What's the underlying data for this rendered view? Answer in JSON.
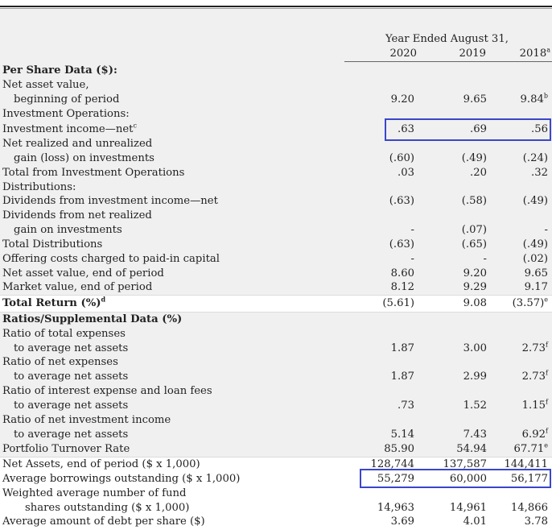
{
  "header": {
    "period_label": "Year Ended August 31,",
    "years": [
      "2020",
      "2019",
      "2018"
    ],
    "year_2018_note": "a"
  },
  "rows": {
    "per_share": "Per Share Data ($):",
    "nav_1": "Net asset value,",
    "nav_2": "beginning of period",
    "nav_vals": [
      "9.20",
      "9.65",
      "9.84"
    ],
    "nav_note": "b",
    "inv_ops": "Investment Operations:",
    "inv_income": "Investment income—net",
    "inv_income_note": "c",
    "inv_income_vals": [
      ".63",
      ".69",
      ".56"
    ],
    "realized_1": "Net realized and unrealized",
    "realized_2": "gain (loss) on investments",
    "realized_vals": [
      "(.60)",
      "(.49)",
      "(.24)"
    ],
    "total_inv_ops": "Total from Investment Operations",
    "total_inv_ops_vals": [
      ".03",
      ".20",
      ".32"
    ],
    "distributions": "Distributions:",
    "div_income": "Dividends from investment income—net",
    "div_income_vals": [
      "(.63)",
      "(.58)",
      "(.49)"
    ],
    "div_gain_1": "Dividends from net realized",
    "div_gain_2": "gain on investments",
    "div_gain_vals": [
      "-",
      "(.07)",
      "-"
    ],
    "total_dist": "Total Distributions",
    "total_dist_vals": [
      "(.63)",
      "(.65)",
      "(.49)"
    ],
    "offering": "Offering costs charged to paid-in capital",
    "offering_vals": [
      "-",
      "-",
      "(.02)"
    ],
    "nav_end": "Net asset value, end of period",
    "nav_end_vals": [
      "8.60",
      "9.20",
      "9.65"
    ],
    "market": "Market value, end of period",
    "market_vals": [
      "8.12",
      "9.29",
      "9.17"
    ],
    "total_return": "Total Return (%)",
    "total_return_note": "d",
    "total_return_vals": [
      "(5.61)",
      "9.08",
      "(3.57)"
    ],
    "total_return_note_e": "e",
    "ratios": "Ratios/Supplemental Data (%)",
    "r_total_1": "Ratio of total expenses",
    "r_total_2": "to average net assets",
    "r_total_vals": [
      "1.87",
      "3.00",
      "2.73"
    ],
    "r_net_1": "Ratio of net expenses",
    "r_net_2": "to average net assets",
    "r_net_vals": [
      "1.87",
      "2.99",
      "2.73"
    ],
    "r_int_1": "Ratio of interest expense and loan fees",
    "r_int_2": "to average net assets",
    "r_int_vals": [
      ".73",
      "1.52",
      "1.15"
    ],
    "r_nii_1": "Ratio of net investment income",
    "r_nii_2": "to average net assets",
    "r_nii_vals": [
      "5.14",
      "7.43",
      "6.92"
    ],
    "note_f": "f",
    "turnover": "Portfolio Turnover Rate",
    "turnover_vals": [
      "85.90",
      "54.94",
      "67.71"
    ],
    "net_assets": "Net Assets, end of period ($ x 1,000)",
    "net_assets_vals": [
      "128,744",
      "137,587",
      "144,411"
    ],
    "borrow": "Average borrowings outstanding ($ x 1,000)",
    "borrow_vals": [
      "55,279",
      "60,000",
      "56,177"
    ],
    "shares_1": "Weighted average number of fund",
    "shares_2": "shares outstanding ($ x 1,000)",
    "shares_vals": [
      "14,963",
      "14,961",
      "14,866"
    ],
    "debt": "Average amount of debt per share ($)",
    "debt_vals": [
      "3.69",
      "4.01",
      "3.78"
    ]
  },
  "highlight_color": "#3b46c9"
}
